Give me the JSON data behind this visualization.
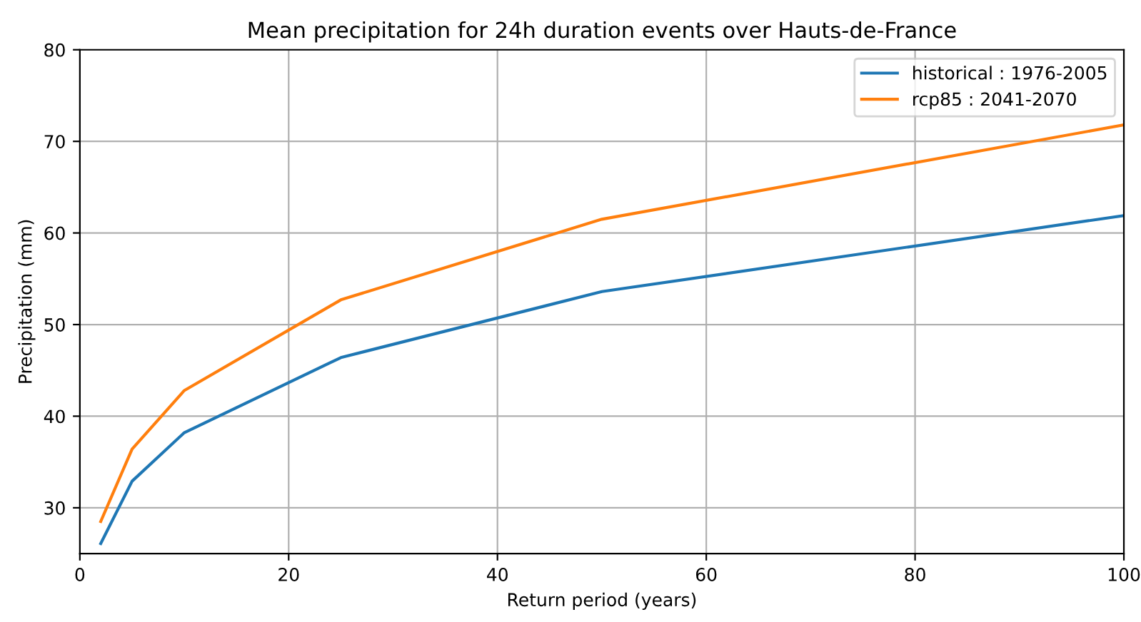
{
  "chart_data": {
    "type": "line",
    "title": "Mean precipitation for 24h duration events over Hauts-de-France",
    "xlabel": "Return period (years)",
    "ylabel": "Precipitation (mm)",
    "x": [
      2,
      5,
      10,
      25,
      50,
      100
    ],
    "series": [
      {
        "name": "historical : 1976-2005",
        "color": "#1f77b4",
        "values": [
          26.1,
          32.9,
          38.2,
          46.4,
          53.6,
          61.9
        ]
      },
      {
        "name": "rcp85 : 2041-2070",
        "color": "#ff7f0e",
        "values": [
          28.5,
          36.4,
          42.8,
          52.7,
          61.5,
          71.8
        ]
      }
    ],
    "xlim": [
      0,
      100
    ],
    "xticks": [
      0,
      20,
      40,
      60,
      80,
      100
    ],
    "ylim": [
      25,
      80
    ],
    "yticks": [
      30,
      40,
      50,
      60,
      70,
      80
    ],
    "grid": true,
    "legend": "top right",
    "marker": "none",
    "line_style": "solid"
  }
}
